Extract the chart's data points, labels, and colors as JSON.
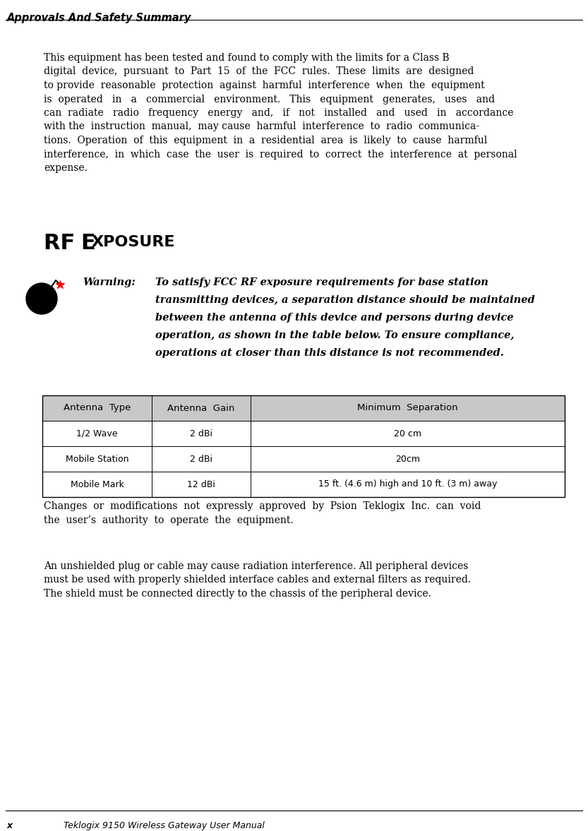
{
  "page_width": 8.33,
  "page_height": 11.77,
  "bg_color": "#ffffff",
  "header_title": "Approvals And Safety Summary",
  "footer_page": "x",
  "footer_text": "Teklogix 9150 Wireless Gateway User Manual",
  "table_headers": [
    "Antenna  Type",
    "Antenna  Gain",
    "Minimum  Separation"
  ],
  "table_rows": [
    [
      "1/2 Wave",
      "2 dBi",
      "20 cm"
    ],
    [
      "Mobile Station",
      "2 dBi",
      "20cm"
    ],
    [
      "Mobile Mark",
      "12 dBi",
      "15 ft. (4.6 m) high and 10 ft. (3 m) away"
    ]
  ],
  "main_para_lines": [
    "This equipment has been tested and found to comply with the limits for a Class B",
    "digital  device,  pursuant  to  Part  15  of  the  FCC  rules.  These  limits  are  designed",
    "to provide  reasonable  protection  against  harmful  interference  when  the  equipment",
    "is  operated   in   a   commercial   environment.   This   equipment   generates,   uses   and",
    "can  radiate   radio   frequency   energy   and,   if   not   installed   and   used   in   accordance",
    "with the  instruction  manual,  may cause  harmful  interference  to  radio  communica-",
    "tions.  Operation  of  this  equipment  in  a  residential  area  is  likely  to  cause  harmful",
    "interference,  in  which  case  the  user  is  required  to  correct  the  interference  at  personal",
    "expense."
  ],
  "warning_label": "Warning:",
  "warning_lines": [
    "To satisfy FCC RF exposure requirements for base station",
    "transmitting devices, a separation distance should be maintained",
    "between the antenna of this device and persons during device",
    "operation, as shown in the table below. To ensure compliance,",
    "operations at closer than this distance is not recommended."
  ],
  "changes_lines": [
    "Changes  or  modifications  not  expressly  approved  by  Psion  Teklogix  Inc.  can  void",
    "the  user’s  authority  to  operate  the  equipment."
  ],
  "unshielded_lines": [
    "An unshielded plug or cable may cause radiation interference. All peripheral devices",
    "must be used with properly shielded interface cables and external filters as required.",
    "The shield must be connected directly to the chassis of the peripheral device."
  ]
}
